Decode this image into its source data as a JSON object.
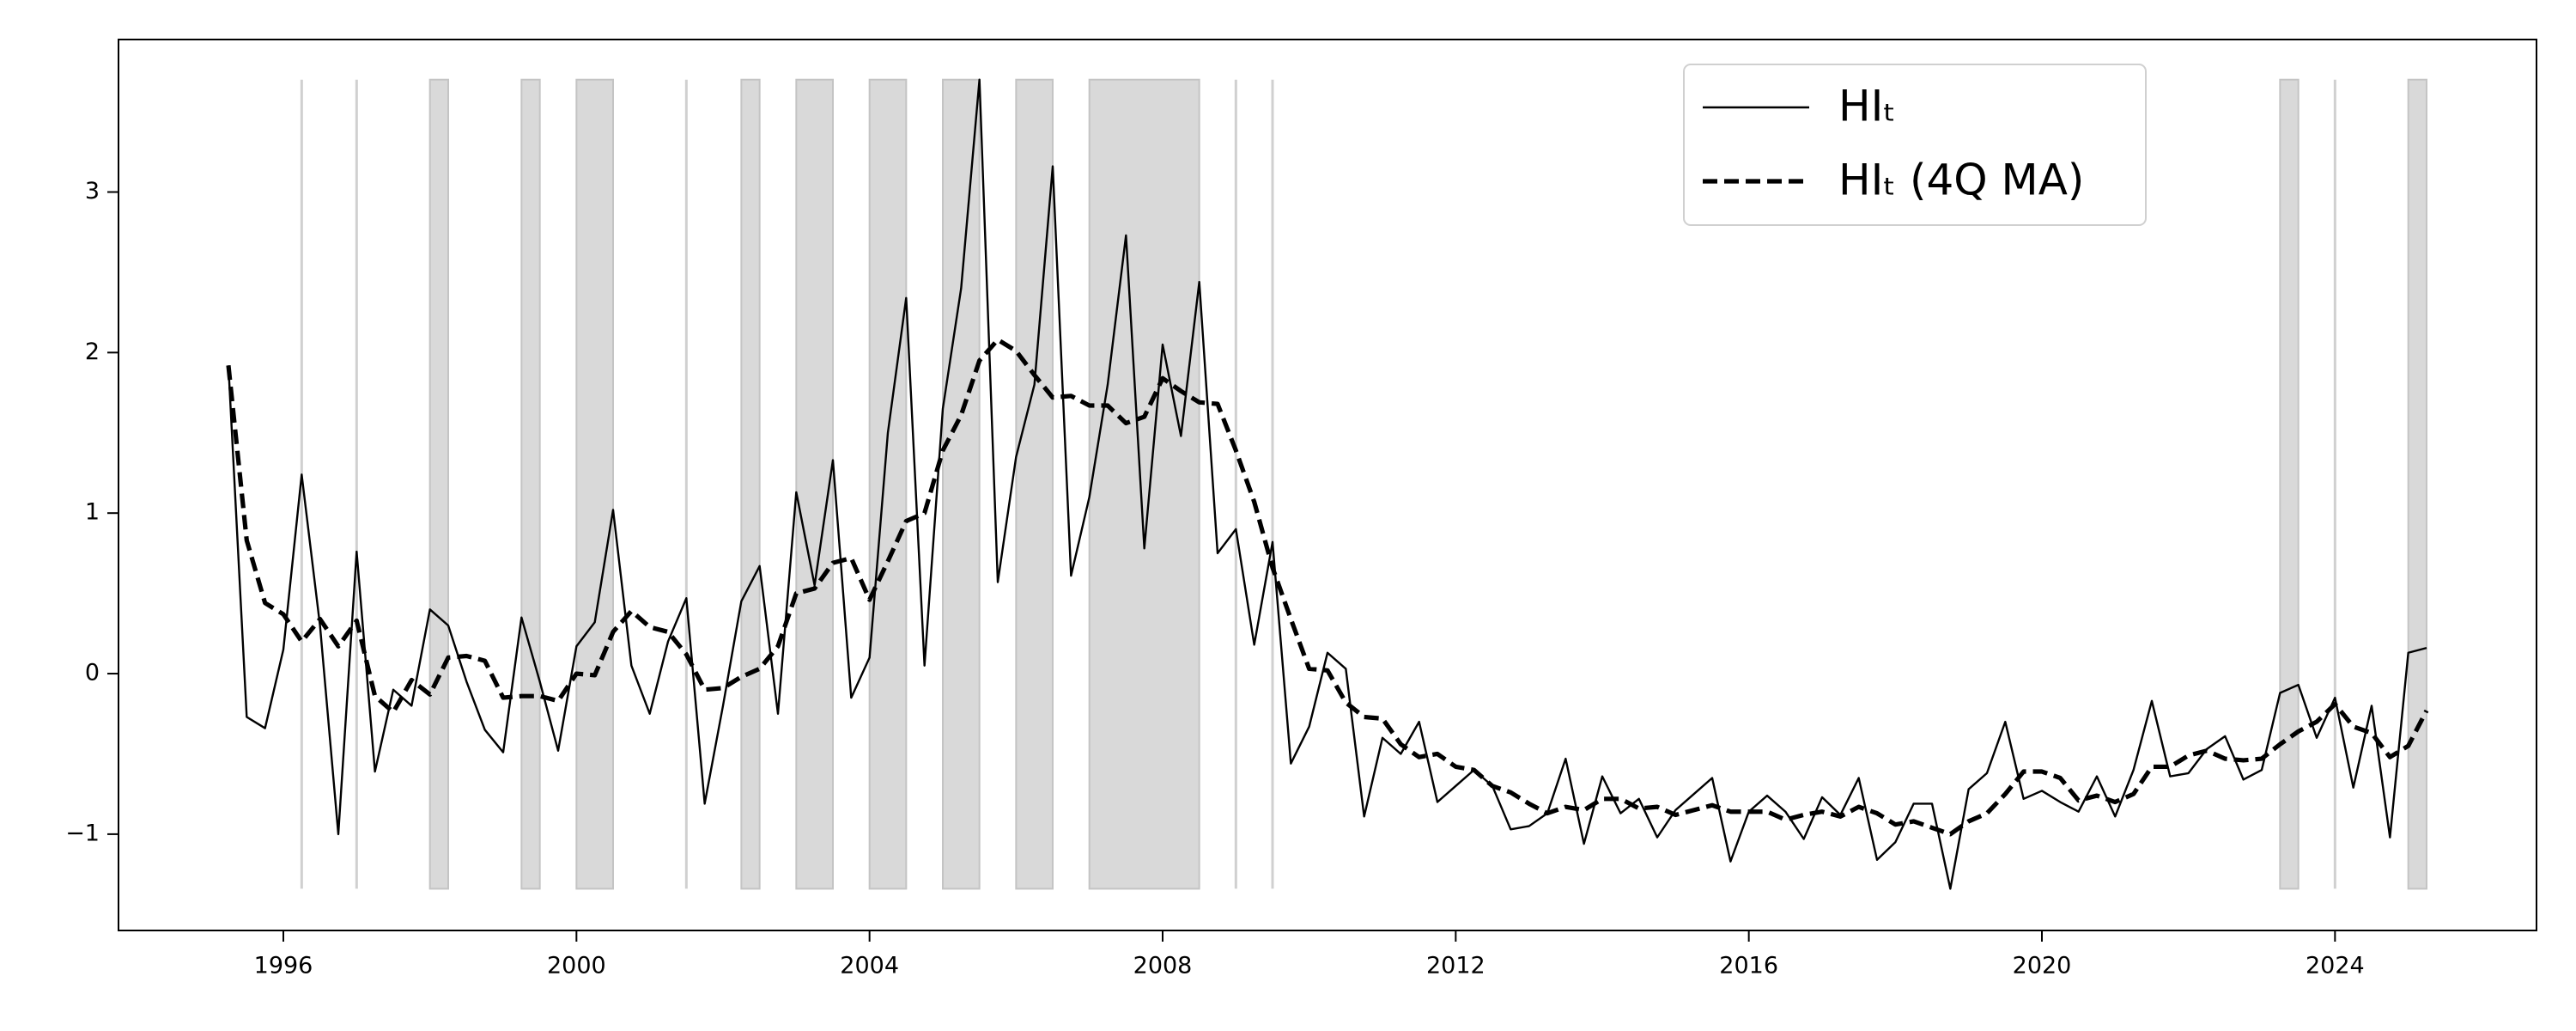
{
  "chart_data": {
    "type": "line",
    "x": [
      1995.25,
      1995.5,
      1995.75,
      1996,
      1996.25,
      1996.5,
      1996.75,
      1997,
      1997.25,
      1997.5,
      1997.75,
      1998,
      1998.25,
      1998.5,
      1998.75,
      1999,
      1999.25,
      1999.5,
      1999.75,
      2000,
      2000.25,
      2000.5,
      2000.75,
      2001,
      2001.25,
      2001.5,
      2001.75,
      2002,
      2002.25,
      2002.5,
      2002.75,
      2003,
      2003.25,
      2003.5,
      2003.75,
      2004,
      2004.25,
      2004.5,
      2004.75,
      2005,
      2005.25,
      2005.5,
      2005.75,
      2006,
      2006.25,
      2006.5,
      2006.75,
      2007,
      2007.25,
      2007.5,
      2007.75,
      2008,
      2008.25,
      2008.5,
      2008.75,
      2009,
      2009.25,
      2009.5,
      2009.75,
      2010,
      2010.25,
      2010.5,
      2010.75,
      2011,
      2011.25,
      2011.5,
      2011.75,
      2012,
      2012.25,
      2012.5,
      2012.75,
      2013,
      2013.25,
      2013.5,
      2013.75,
      2014,
      2014.25,
      2014.5,
      2014.75,
      2015,
      2015.25,
      2015.5,
      2015.75,
      2016,
      2016.25,
      2016.5,
      2016.75,
      2017,
      2017.25,
      2017.5,
      2017.75,
      2018,
      2018.25,
      2018.5,
      2018.75,
      2019,
      2019.25,
      2019.5,
      2019.75,
      2020,
      2020.25,
      2020.5,
      2020.75,
      2021,
      2021.25,
      2021.5,
      2021.75,
      2022,
      2022.25,
      2022.5,
      2022.75,
      2023,
      2023.25,
      2023.5,
      2023.75,
      2024,
      2024.25,
      2024.5,
      2024.75,
      2025,
      2025.25
    ],
    "series": [
      {
        "name": "HIₜ",
        "color": "#000000",
        "style": "solid",
        "values": [
          1.92,
          -0.27,
          -0.34,
          0.15,
          1.24,
          0.3,
          -1.0,
          0.76,
          -0.61,
          -0.1,
          -0.2,
          0.4,
          0.3,
          -0.05,
          -0.35,
          -0.49,
          0.35,
          -0.05,
          -0.48,
          0.17,
          0.32,
          1.02,
          0.05,
          -0.25,
          0.2,
          0.47,
          -0.81,
          -0.2,
          0.45,
          0.67,
          -0.25,
          1.13,
          0.55,
          1.33,
          -0.15,
          0.1,
          1.5,
          2.34,
          0.05,
          1.65,
          2.4,
          3.7,
          0.57,
          1.35,
          1.8,
          3.16,
          0.61,
          1.1,
          1.8,
          2.73,
          0.78,
          2.05,
          1.48,
          2.44,
          0.75,
          0.9,
          0.18,
          0.82,
          -0.56,
          -0.33,
          0.13,
          0.03,
          -0.89,
          -0.4,
          -0.5,
          -0.3,
          -0.8,
          -0.7,
          -0.6,
          -0.7,
          -0.97,
          -0.95,
          -0.87,
          -0.53,
          -1.06,
          -0.64,
          -0.87,
          -0.78,
          -1.02,
          -0.85,
          -0.75,
          -0.65,
          -1.17,
          -0.86,
          -0.76,
          -0.86,
          -1.03,
          -0.77,
          -0.88,
          -0.65,
          -1.16,
          -1.05,
          -0.81,
          -0.81,
          -1.34,
          -0.72,
          -0.62,
          -0.3,
          -0.78,
          -0.73,
          -0.8,
          -0.86,
          -0.64,
          -0.89,
          -0.6,
          -0.17,
          -0.64,
          -0.62,
          -0.47,
          -0.39,
          -0.66,
          -0.6,
          -0.12,
          -0.07,
          -0.4,
          -0.15,
          -0.71,
          -0.2,
          -1.02,
          0.13,
          0.16
        ]
      },
      {
        "name": "HIₜ (4Q MA)",
        "color": "#000000",
        "style": "dashed",
        "values": [
          1.92,
          0.83,
          0.44,
          0.37,
          0.2,
          0.34,
          0.17,
          0.33,
          -0.14,
          -0.24,
          -0.04,
          -0.13,
          0.1,
          0.11,
          0.08,
          -0.15,
          -0.14,
          -0.14,
          -0.17,
          0.0,
          -0.01,
          0.26,
          0.39,
          0.29,
          0.26,
          0.12,
          -0.1,
          -0.09,
          -0.02,
          0.03,
          0.17,
          0.5,
          0.53,
          0.69,
          0.72,
          0.46,
          0.7,
          0.95,
          1.0,
          1.39,
          1.61,
          1.95,
          2.08,
          2.01,
          1.86,
          1.72,
          1.73,
          1.67,
          1.67,
          1.56,
          1.6,
          1.84,
          1.76,
          1.69,
          1.68,
          1.39,
          1.07,
          0.66,
          0.34,
          0.03,
          0.02,
          -0.18,
          -0.27,
          -0.28,
          -0.44,
          -0.52,
          -0.5,
          -0.58,
          -0.6,
          -0.7,
          -0.74,
          -0.81,
          -0.87,
          -0.83,
          -0.85,
          -0.78,
          -0.78,
          -0.84,
          -0.83,
          -0.88,
          -0.85,
          -0.82,
          -0.86,
          -0.86,
          -0.86,
          -0.91,
          -0.88,
          -0.86,
          -0.89,
          -0.83,
          -0.87,
          -0.94,
          -0.92,
          -0.96,
          -1.0,
          -0.92,
          -0.87,
          -0.75,
          -0.61,
          -0.61,
          -0.65,
          -0.79,
          -0.76,
          -0.8,
          -0.75,
          -0.58,
          -0.58,
          -0.51,
          -0.48,
          -0.53,
          -0.54,
          -0.53,
          -0.44,
          -0.36,
          -0.3,
          -0.19,
          -0.33,
          -0.37,
          -0.52,
          -0.45,
          -0.23
        ]
      }
    ],
    "shaded_periods": [
      [
        1996.25,
        1996.25
      ],
      [
        1997,
        1997
      ],
      [
        1998,
        1998.25
      ],
      [
        1999.25,
        1999.5
      ],
      [
        2000,
        2000.5
      ],
      [
        2001.5,
        2001.5
      ],
      [
        2002.25,
        2002.5
      ],
      [
        2003,
        2003.5
      ],
      [
        2004,
        2004.5
      ],
      [
        2005,
        2005.5
      ],
      [
        2006,
        2006.5
      ],
      [
        2007,
        2008.5
      ],
      [
        2009,
        2009
      ],
      [
        2009.5,
        2009.5
      ],
      [
        2023.25,
        2023.5
      ],
      [
        2024,
        2024
      ],
      [
        2025,
        2025.25
      ]
    ],
    "shade_color": "#d9d9d9",
    "xlim": [
      1993.75,
      2026.75
    ],
    "xticks": [
      1996,
      2000,
      2004,
      2008,
      2012,
      2016,
      2020,
      2024
    ],
    "ylim": [
      -1.6,
      3.95
    ],
    "yticks": [
      {
        "value": -1,
        "label": "−1"
      },
      0,
      1,
      2,
      3
    ],
    "legend": "best"
  }
}
